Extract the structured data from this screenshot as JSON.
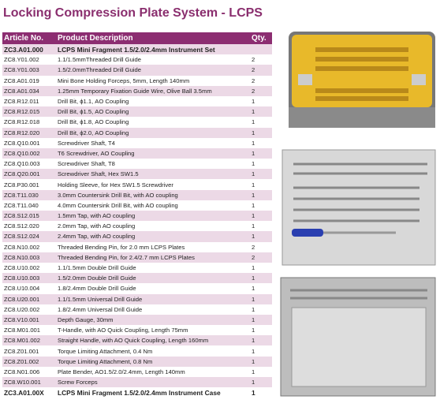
{
  "header": {
    "title": "Locking Compression Plate System - LCPS"
  },
  "table": {
    "columns": [
      "Article No.",
      "Product Description",
      "Qty."
    ],
    "rows": [
      [
        "ZC3.A01.000",
        "LCPS Mini Fragment 1.5/2.0/2.4mm Instrument Set",
        null
      ],
      [
        "ZC8.Y01.002",
        "1.1/1.5mmThreaded Drill Guide",
        2
      ],
      [
        "ZC8.Y01.003",
        "1.5/2.0mmThreaded Drill Guide",
        2
      ],
      [
        "ZC8.A01.019",
        "Mini Bone Holding Forceps, 5mm, Length 140mm",
        2
      ],
      [
        "ZC8.A01.034",
        "1.25mm Temporary Fixation Guide Wire, Olive Ball 3.5mm",
        2
      ],
      [
        "ZC8.R12.011",
        "Drill Bit, ϕ1.1, AO Coupling",
        1
      ],
      [
        "ZC8.R12.015",
        "Drill Bit, ϕ1.5, AO Coupling",
        1
      ],
      [
        "ZC8.R12.018",
        "Drill Bit, ϕ1.8, AO Coupling",
        1
      ],
      [
        "ZC8.R12.020",
        "Drill Bit, ϕ2.0, AO Coupling",
        1
      ],
      [
        "ZC8.Q10.001",
        "Screwdriver Shaft, T4",
        1
      ],
      [
        "ZC8.Q10.002",
        "T6 Screwdriver, AO Coupling",
        1
      ],
      [
        "ZC8.Q10.003",
        "Screwdriver Shaft, T8",
        1
      ],
      [
        "ZC8.Q20.001",
        "Screwdriver Shaft, Hex SW1.5",
        1
      ],
      [
        "ZC8.P30.001",
        "Holding Sleeve, for Hex SW1.5 Screwdriver",
        1
      ],
      [
        "ZC8.T11.030",
        "3.0mm Countersink Drill Bit, with AO coupling",
        1
      ],
      [
        "ZC8.T11.040",
        "4.0mm Countersink Drill Bit, with AO coupling",
        1
      ],
      [
        "ZC8.S12.015",
        "1.5mm Tap, with AO coupling",
        1
      ],
      [
        "ZC8.S12.020",
        "2.0mm Tap, with AO coupling",
        1
      ],
      [
        "ZC8.S12.024",
        "2.4mm Tap, with AO coupling",
        1
      ],
      [
        "ZC8.N10.002",
        "Threaded Bending Pin, for 2.0 mm LCPS Plates",
        2
      ],
      [
        "ZC8.N10.003",
        "Threaded Bending Pin, for 2.4/2.7 mm LCPS Plates",
        2
      ],
      [
        "ZC8.U10.002",
        "1.1/1.5mm Double Drill Guide",
        1
      ],
      [
        "ZC8.U10.003",
        "1.5/2.0mm Double Drill Guide",
        1
      ],
      [
        "ZC8.U10.004",
        "1.8/2.4mm Double Drill Guide",
        1
      ],
      [
        "ZC8.U20.001",
        "1.1/1.5mm Universal Drill Guide",
        1
      ],
      [
        "ZC8.U20.002",
        "1.8/2.4mm Universal Drill Guide",
        1
      ],
      [
        "ZC8.V10.001",
        "Depth Gauge, 30mm",
        1
      ],
      [
        "ZC8.M01.001",
        "T-Handle, with AO Quick Coupling, Length 75mm",
        1
      ],
      [
        "ZC8.M01.002",
        "Straight Handle, with AO Quick Coupling, Length 160mm",
        1
      ],
      [
        "ZC8.Z01.001",
        "Torque Limiting Attachment, 0.4 Nm",
        1
      ],
      [
        "ZC8.Z01.002",
        "Torque Limiting Attachment, 0.8 Nm",
        1
      ],
      [
        "ZC8.N01.006",
        "Plate Bender, AO1.5/2.0/2.4mm, Length 140mm",
        1
      ],
      [
        "ZC8.W10.001",
        "Screw Forceps",
        1
      ],
      [
        "ZC3.A01.00X",
        "LCPS Mini Fragment 1.5/2.0/2.4mm Instrument Case",
        1
      ]
    ]
  }
}
